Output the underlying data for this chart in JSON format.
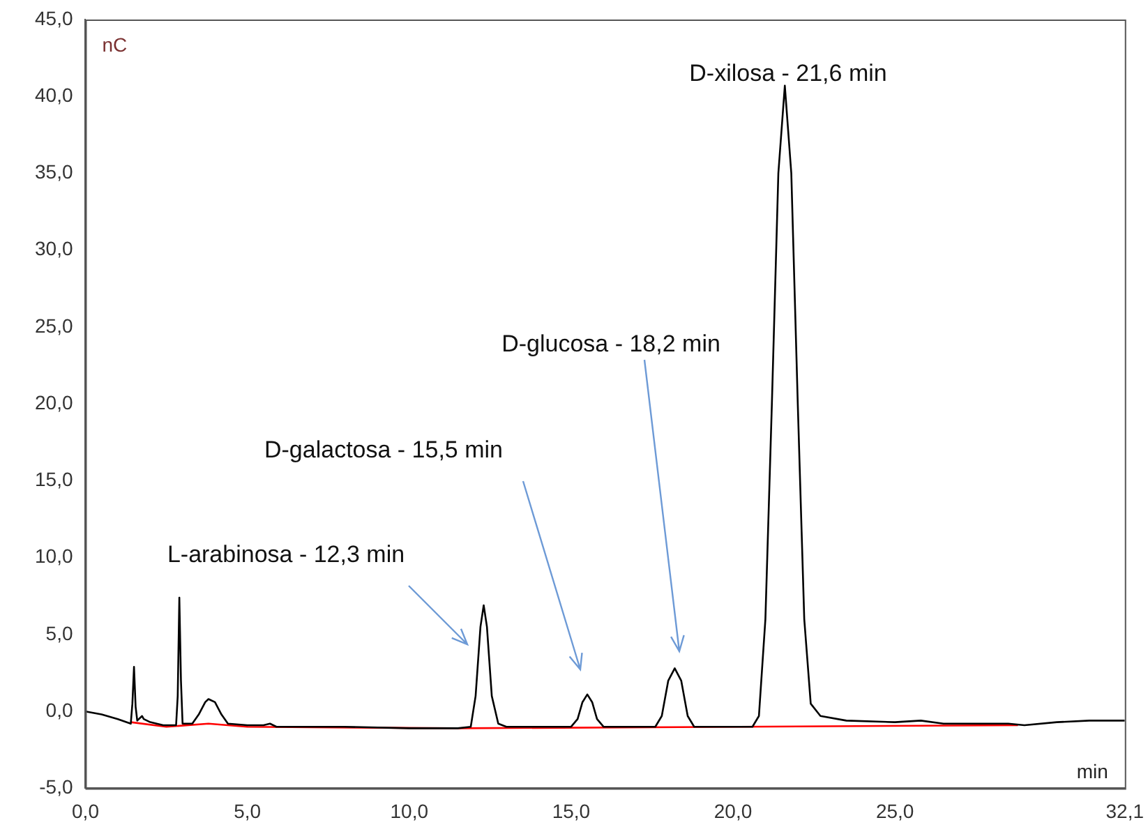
{
  "chart_data": {
    "type": "line",
    "xlabel": "min",
    "ylabel": "nC",
    "marker": "none",
    "line_style": "solid",
    "grid": false,
    "legend": false,
    "xlim": [
      0,
      32.1
    ],
    "ylim": [
      -5,
      45
    ],
    "xticks": [
      {
        "value": 0,
        "label": "0,0"
      },
      {
        "value": 5,
        "label": "5,0"
      },
      {
        "value": 10,
        "label": "10,0"
      },
      {
        "value": 15,
        "label": "15,0"
      },
      {
        "value": 20,
        "label": "20,0"
      },
      {
        "value": 25,
        "label": "25,0"
      },
      {
        "value": 32.1,
        "label": "32,1"
      }
    ],
    "yticks": [
      {
        "value": -5,
        "label": "-5,0"
      },
      {
        "value": 0,
        "label": "0,0"
      },
      {
        "value": 5,
        "label": "5,0"
      },
      {
        "value": 10,
        "label": "10,0"
      },
      {
        "value": 15,
        "label": "15,0"
      },
      {
        "value": 20,
        "label": "20,0"
      },
      {
        "value": 25,
        "label": "25,0"
      },
      {
        "value": 30,
        "label": "30,0"
      },
      {
        "value": 35,
        "label": "35,0"
      },
      {
        "value": 40,
        "label": "40,0"
      },
      {
        "value": 45,
        "label": "45,0"
      }
    ],
    "series": [
      {
        "color": "#000000",
        "x": [
          0,
          0.5,
          1.0,
          1.4,
          1.45,
          1.5,
          1.55,
          1.6,
          1.75,
          1.8,
          2.0,
          2.4,
          2.8,
          2.85,
          2.9,
          2.95,
          3.0,
          3.3,
          3.5,
          3.7,
          3.8,
          4.0,
          4.2,
          4.4,
          5.0,
          5.5,
          5.7,
          5.9,
          8,
          10,
          11.5,
          11.9,
          12.05,
          12.2,
          12.3,
          12.4,
          12.55,
          12.75,
          13,
          15.0,
          15.2,
          15.35,
          15.5,
          15.65,
          15.8,
          16.0,
          17.6,
          17.8,
          18.0,
          18.2,
          18.4,
          18.6,
          18.8,
          20.6,
          20.8,
          21.0,
          21.2,
          21.4,
          21.6,
          21.8,
          22.0,
          22.2,
          22.4,
          22.7,
          23.5,
          25.0,
          25.8,
          26.5,
          28.5,
          29,
          30,
          31,
          32.1
        ],
        "values": [
          0.0,
          -0.2,
          -0.5,
          -0.8,
          0.5,
          2.9,
          0.3,
          -0.6,
          -0.3,
          -0.5,
          -0.7,
          -0.9,
          -0.9,
          1.0,
          7.4,
          2.0,
          -0.8,
          -0.8,
          -0.2,
          0.6,
          0.8,
          0.6,
          -0.2,
          -0.8,
          -0.9,
          -0.9,
          -0.8,
          -1.0,
          -1.0,
          -1.1,
          -1.1,
          -1.0,
          1.0,
          5.5,
          6.9,
          5.5,
          1.0,
          -0.8,
          -1.0,
          -1.0,
          -0.5,
          0.6,
          1.1,
          0.6,
          -0.5,
          -1.0,
          -1.0,
          -0.3,
          2.0,
          2.8,
          2.0,
          -0.3,
          -1.0,
          -1.0,
          -0.3,
          6,
          20,
          35,
          40.7,
          35,
          20,
          6,
          0.5,
          -0.3,
          -0.6,
          -0.7,
          -0.6,
          -0.8,
          -0.8,
          -0.9,
          -0.7,
          -0.6,
          -0.6
        ]
      },
      {
        "color": "#ff0000",
        "x": [
          1.4,
          2.5,
          3.8,
          5.0,
          11.5,
          28.8
        ],
        "values": [
          -0.7,
          -1.0,
          -0.8,
          -1.0,
          -1.1,
          -0.9
        ]
      }
    ],
    "annotations": [
      "L-arabinosa - 12,3 min",
      "D-galactosa - 15,5 min",
      "D-glucosa - 18,2 min",
      "D-xilosa - 21,6 min"
    ]
  }
}
